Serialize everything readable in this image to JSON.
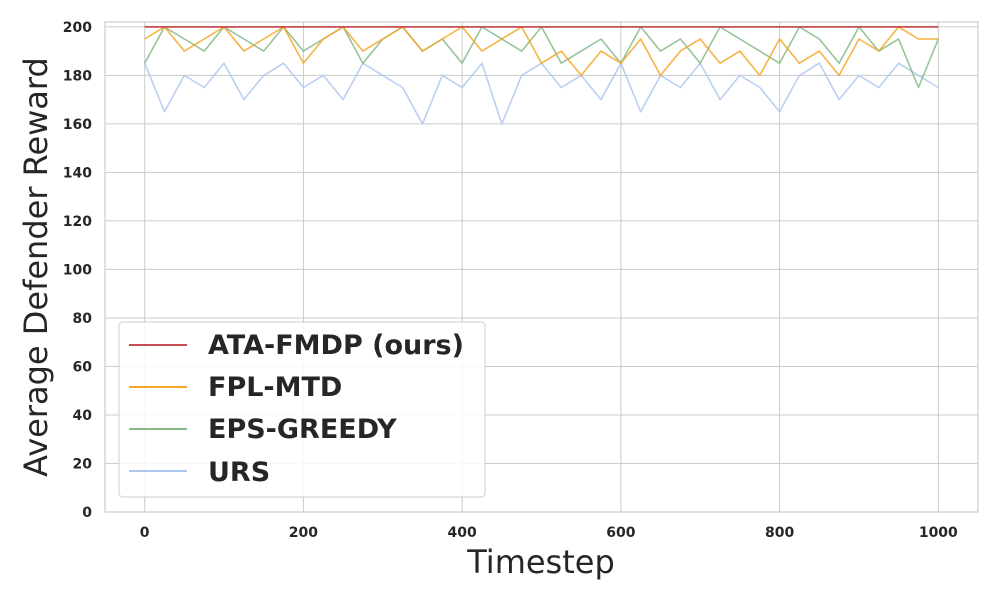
{
  "chart_data": {
    "type": "line",
    "title": "",
    "xlabel": "Timestep",
    "ylabel": "Average Defender Reward",
    "xlim": [
      -50,
      1050
    ],
    "ylim": [
      0,
      202
    ],
    "x_ticks": [
      0,
      200,
      400,
      600,
      800,
      1000
    ],
    "y_ticks": [
      0,
      20,
      40,
      60,
      80,
      100,
      120,
      140,
      160,
      180,
      200
    ],
    "grid": true,
    "legend_position": "lower-left",
    "x": [
      0,
      25,
      50,
      75,
      100,
      125,
      150,
      175,
      200,
      225,
      250,
      275,
      300,
      325,
      350,
      375,
      400,
      425,
      450,
      475,
      500,
      525,
      550,
      575,
      600,
      625,
      650,
      675,
      700,
      725,
      750,
      775,
      800,
      825,
      850,
      875,
      900,
      925,
      950,
      975,
      1000
    ],
    "series": [
      {
        "name": "ATA-FMDP (ours)",
        "color": "#c44e52",
        "values": [
          200,
          200,
          200,
          200,
          200,
          200,
          200,
          200,
          200,
          200,
          200,
          200,
          200,
          200,
          200,
          200,
          200,
          200,
          200,
          200,
          200,
          200,
          200,
          200,
          200,
          200,
          200,
          200,
          200,
          200,
          200,
          200,
          200,
          200,
          200,
          200,
          200,
          200,
          200,
          200,
          200
        ]
      },
      {
        "name": "FPL-MTD",
        "color": "#f5a623",
        "values": [
          195,
          200,
          190,
          195,
          200,
          190,
          195,
          200,
          185,
          195,
          200,
          190,
          195,
          200,
          190,
          195,
          200,
          190,
          195,
          200,
          185,
          190,
          180,
          190,
          185,
          195,
          180,
          190,
          195,
          185,
          190,
          180,
          195,
          185,
          190,
          180,
          195,
          190,
          200,
          195,
          195
        ]
      },
      {
        "name": "EPS-GREEDY",
        "color": "#86b888",
        "values": [
          185,
          200,
          195,
          190,
          200,
          195,
          190,
          200,
          190,
          195,
          200,
          185,
          195,
          200,
          190,
          195,
          185,
          200,
          195,
          190,
          200,
          185,
          190,
          195,
          185,
          200,
          190,
          195,
          185,
          200,
          195,
          190,
          185,
          200,
          195,
          185,
          200,
          190,
          195,
          175,
          195
        ]
      },
      {
        "name": "URS",
        "color": "#aec7f0",
        "values": [
          185,
          165,
          180,
          175,
          185,
          170,
          180,
          185,
          175,
          180,
          170,
          185,
          180,
          175,
          160,
          180,
          175,
          185,
          160,
          180,
          185,
          175,
          180,
          170,
          185,
          165,
          180,
          175,
          185,
          170,
          180,
          175,
          165,
          180,
          185,
          170,
          180,
          175,
          185,
          180,
          175
        ]
      }
    ]
  }
}
